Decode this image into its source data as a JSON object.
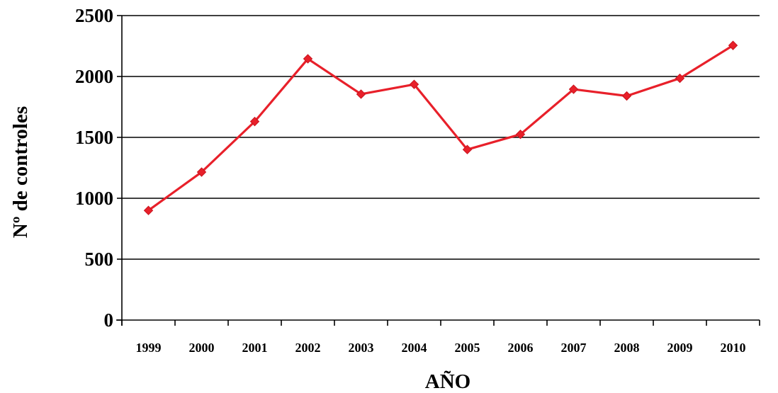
{
  "chart_data": {
    "type": "line",
    "title": "",
    "xlabel": "AÑO",
    "ylabel": "Nº de controles",
    "categories": [
      "1999",
      "2000",
      "2001",
      "2002",
      "2003",
      "2004",
      "2005",
      "2006",
      "2007",
      "2008",
      "2009",
      "2010"
    ],
    "series": [
      {
        "values": [
          900,
          1215,
          1630,
          2145,
          1855,
          1935,
          1400,
          1525,
          1895,
          1840,
          1985,
          2255
        ],
        "color": "#e8202a",
        "marker": "diamond"
      }
    ],
    "ylim": [
      0,
      2500
    ],
    "yticks": [
      "0",
      "500",
      "1000",
      "1500",
      "2000",
      "2500"
    ],
    "grid": "horizontal",
    "legend": "none"
  }
}
